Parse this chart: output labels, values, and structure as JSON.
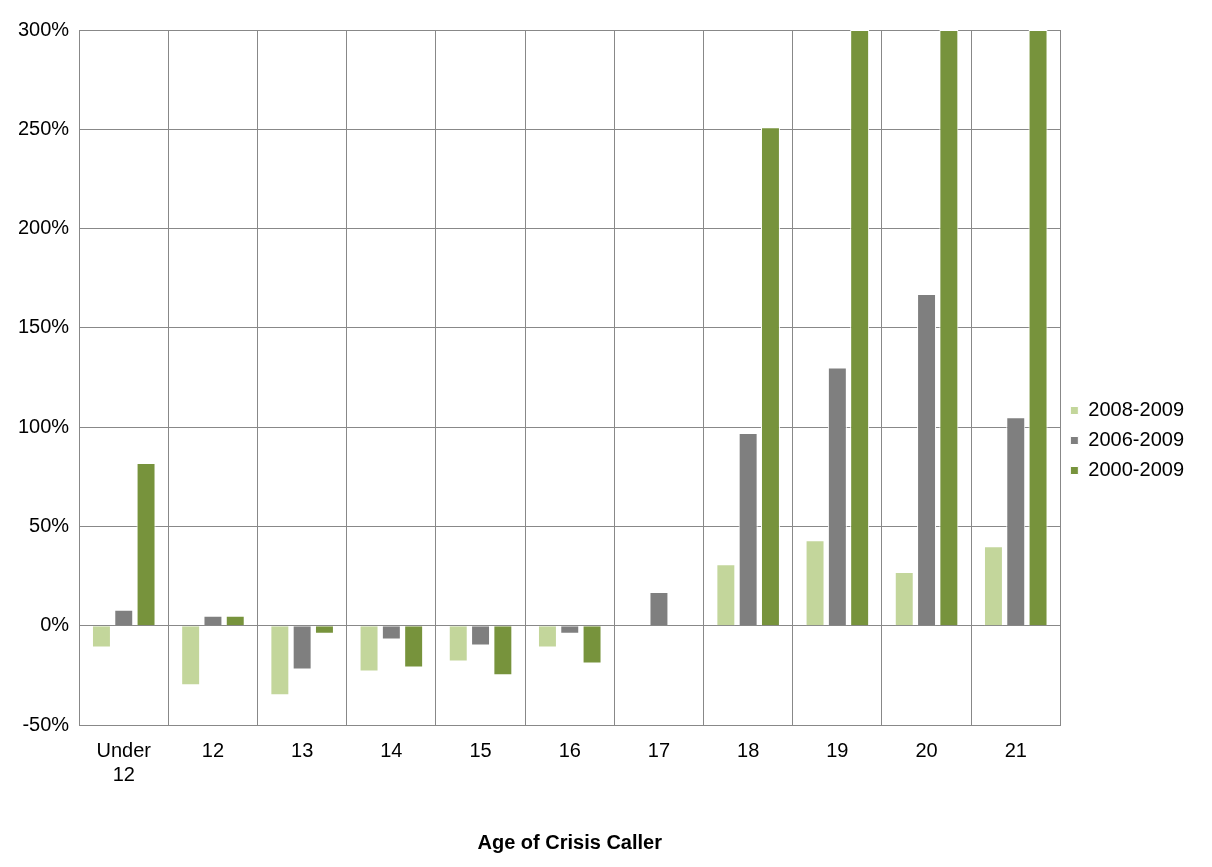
{
  "chart_data": {
    "type": "bar",
    "xlabel": "Age of Crisis Caller",
    "categories": [
      "Under 12",
      "12",
      "13",
      "14",
      "15",
      "16",
      "17",
      "18",
      "19",
      "20",
      "21"
    ],
    "series": [
      {
        "name": "2008-2009",
        "color": "#c3d69b",
        "values": [
          -11,
          -30,
          -35,
          -23,
          -18,
          -11,
          null,
          31,
          43,
          27,
          40
        ]
      },
      {
        "name": "2006-2009",
        "color": "#7f7f7f",
        "values": [
          8,
          5,
          -22,
          -7,
          -10,
          -4,
          17,
          97,
          130,
          167,
          105
        ]
      },
      {
        "name": "2000-2009",
        "color": "#77933c",
        "values": [
          82,
          5,
          -4,
          -21,
          -25,
          -19,
          null,
          251,
          300,
          300,
          300
        ]
      }
    ],
    "ylim": [
      -50,
      300
    ],
    "yticks": [
      {
        "value": -50,
        "label": "-50%"
      },
      {
        "value": 0,
        "label": "0%"
      },
      {
        "value": 50,
        "label": "50%"
      },
      {
        "value": 100,
        "label": "100%"
      },
      {
        "value": 150,
        "label": "150%"
      },
      {
        "value": 200,
        "label": "200%"
      },
      {
        "value": 250,
        "label": "250%"
      },
      {
        "value": 300,
        "label": "300%"
      }
    ],
    "grid": true,
    "legend": "right"
  }
}
